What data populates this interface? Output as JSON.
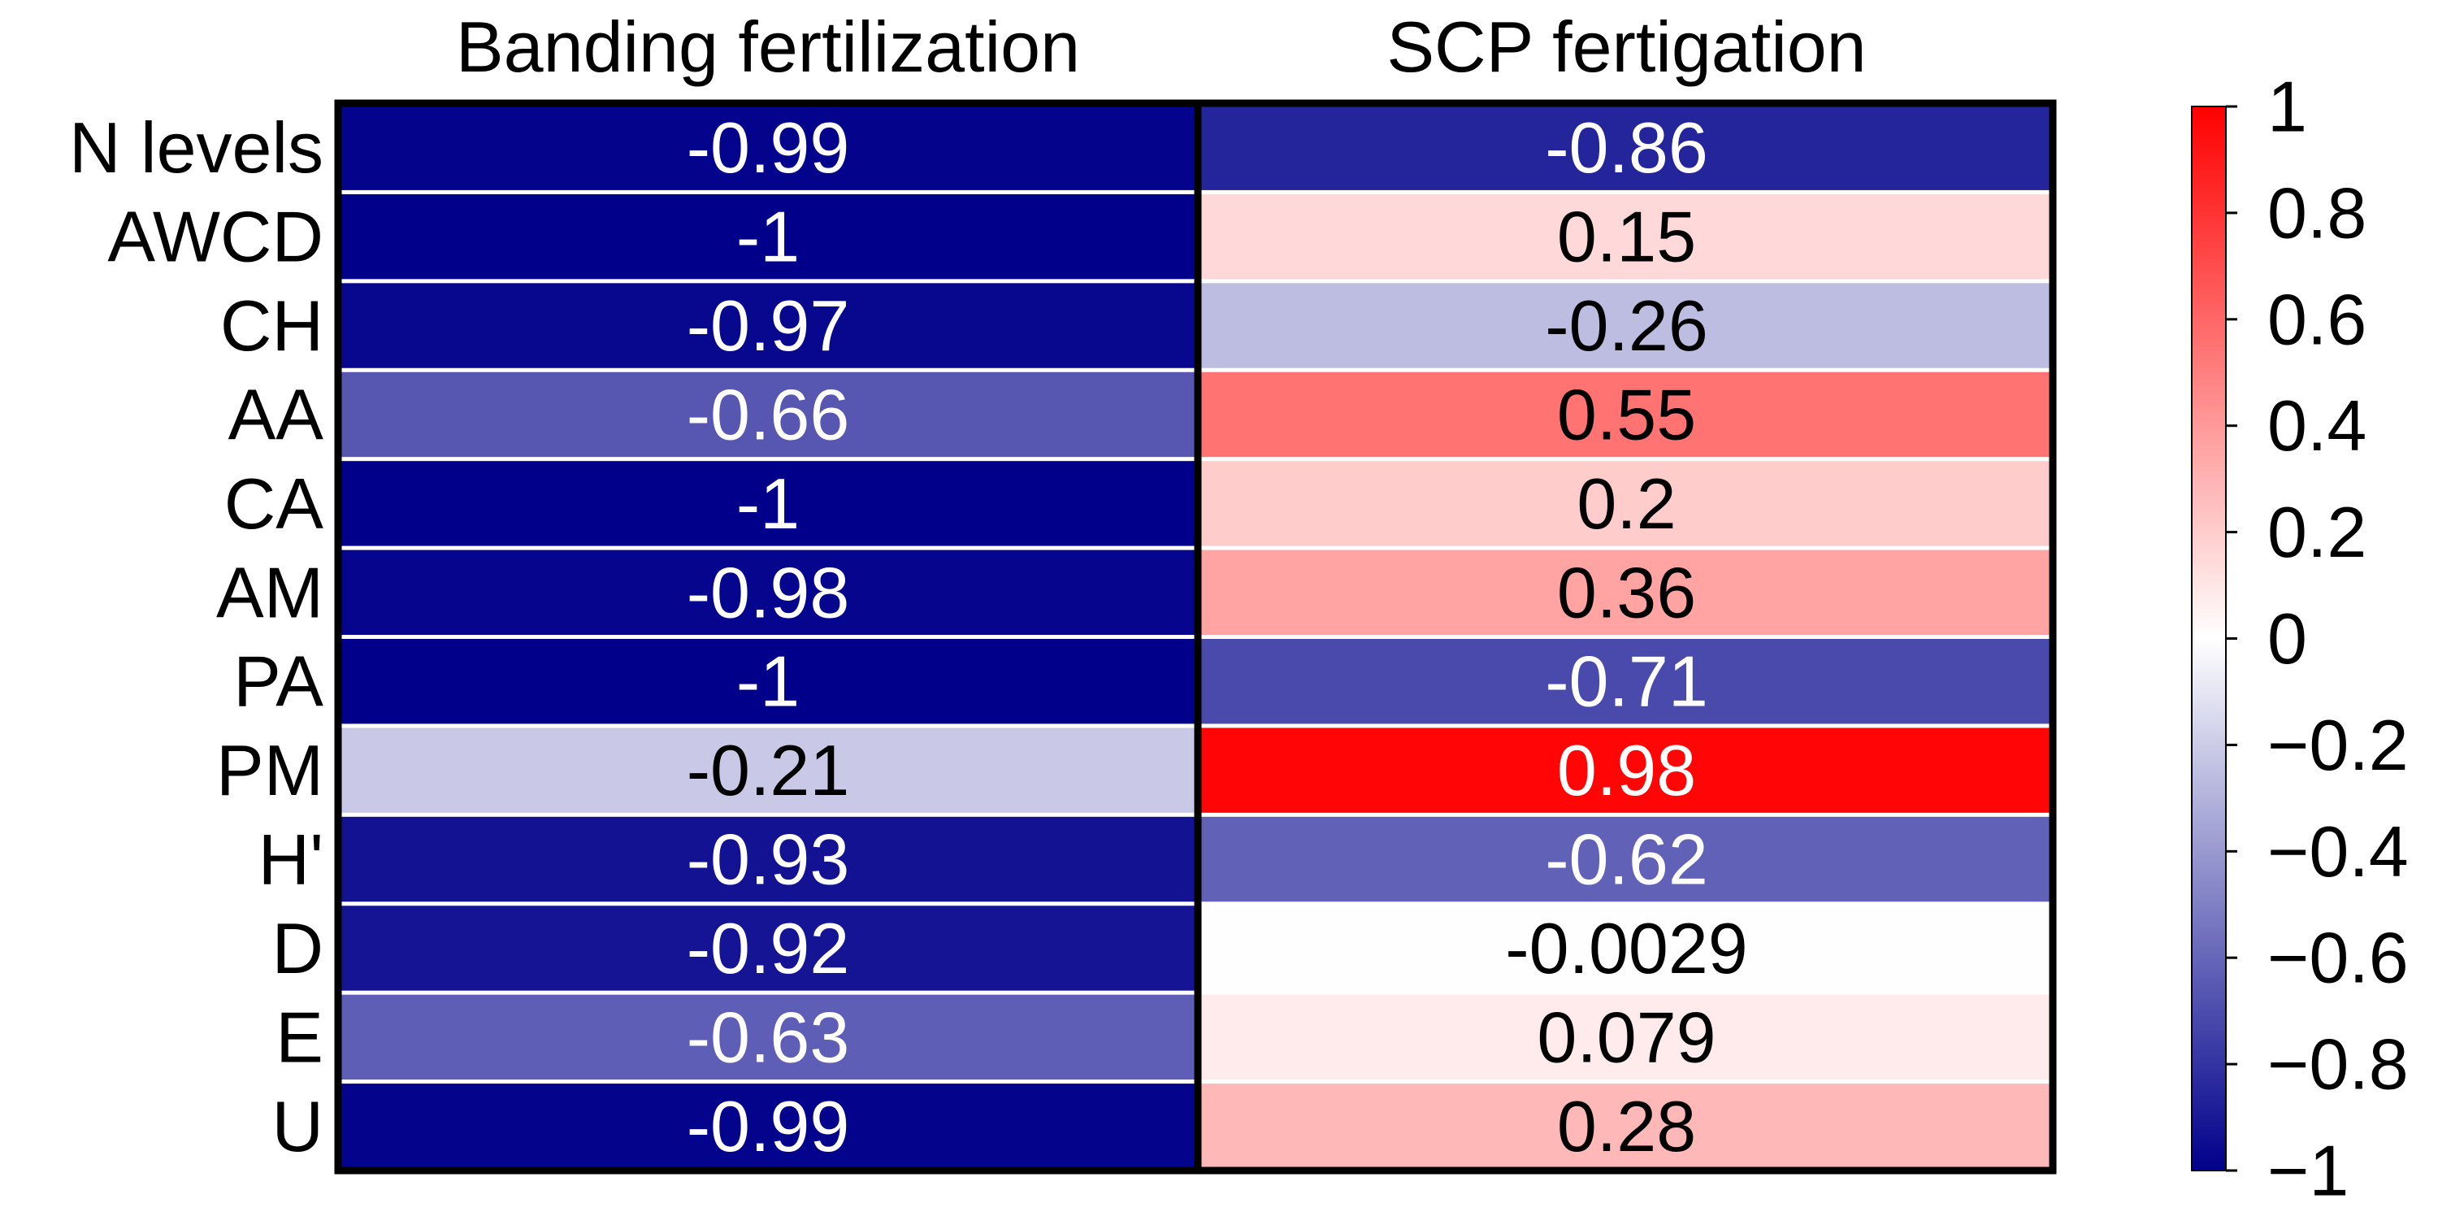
{
  "chart_data": {
    "type": "heatmap",
    "title": "",
    "columns": [
      "Banding fertilization",
      "SCP fertigation"
    ],
    "rows": [
      "N levels",
      "AWCD",
      "CH",
      "AA",
      "CA",
      "AM",
      "PA",
      "PM",
      "H'",
      "D",
      "E",
      "U"
    ],
    "values": [
      [
        -0.99,
        -0.86
      ],
      [
        -1,
        0.15
      ],
      [
        -0.97,
        -0.26
      ],
      [
        -0.66,
        0.55
      ],
      [
        -1,
        0.2
      ],
      [
        -0.98,
        0.36
      ],
      [
        -1,
        -0.71
      ],
      [
        -0.21,
        0.98
      ],
      [
        -0.93,
        -0.62
      ],
      [
        -0.92,
        -0.0029
      ],
      [
        -0.63,
        0.079
      ],
      [
        -0.99,
        0.28
      ]
    ],
    "value_labels": [
      [
        "-0.99",
        "-0.86"
      ],
      [
        "-1",
        "0.15"
      ],
      [
        "-0.97",
        "-0.26"
      ],
      [
        "-0.66",
        "0.55"
      ],
      [
        "-1",
        "0.2"
      ],
      [
        "-0.98",
        "0.36"
      ],
      [
        "-1",
        "-0.71"
      ],
      [
        "-0.21",
        "0.98"
      ],
      [
        "-0.93",
        "-0.62"
      ],
      [
        "-0.92",
        "-0.0029"
      ],
      [
        "-0.63",
        "0.079"
      ],
      [
        "-0.99",
        "0.28"
      ]
    ],
    "colorbar": {
      "range": [
        -1,
        1
      ],
      "ticks": [
        1,
        0.8,
        0.6,
        0.4,
        0.2,
        0,
        -0.2,
        -0.4,
        -0.6,
        -0.8,
        -1
      ],
      "tick_labels": [
        "1",
        "0.8",
        "0.6",
        "0.4",
        "0.2",
        "0",
        "−0.2",
        "−0.4",
        "−0.6",
        "−0.8",
        "−1"
      ],
      "colors": {
        "low": "#00008b",
        "mid": "#ffffff",
        "high": "#ff0000"
      }
    }
  }
}
